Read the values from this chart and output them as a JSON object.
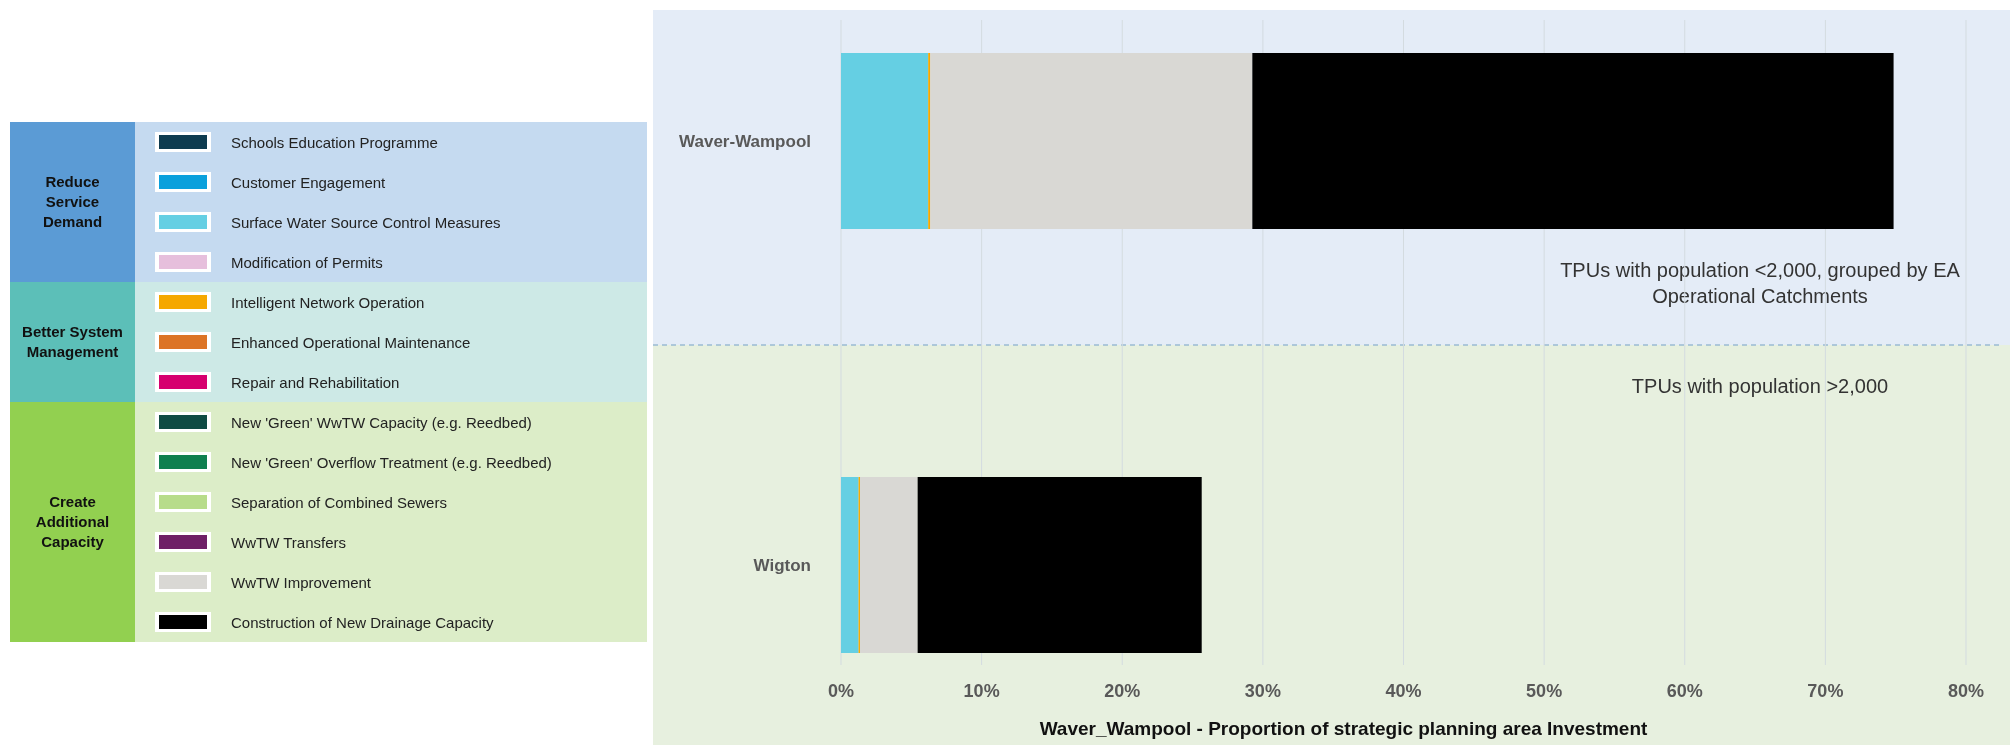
{
  "chart_data": {
    "type": "bar",
    "orientation": "horizontal",
    "stacked": true,
    "categories": [
      "Waver-Wampool",
      "Wigton"
    ],
    "series": [
      {
        "name": "Schools Education Programme",
        "color": "#0d3b4f",
        "values": [
          0,
          0
        ]
      },
      {
        "name": "Customer Engagement",
        "color": "#0aa0dc",
        "values": [
          0,
          0
        ]
      },
      {
        "name": "Surface Water Source Control Measures",
        "color": "#65cfe3",
        "values": [
          6.2,
          1.25
        ]
      },
      {
        "name": "Modification of Permits",
        "color": "#e6bfdc",
        "values": [
          0,
          0
        ]
      },
      {
        "name": "Intelligent Network Operation",
        "color": "#f5a800",
        "values": [
          0.15,
          0.1
        ]
      },
      {
        "name": "Enhanced Operational Maintenance",
        "color": "#dc7425",
        "values": [
          0,
          0
        ]
      },
      {
        "name": "Repair and Rehabilitation",
        "color": "#d6006e",
        "values": [
          0,
          0
        ]
      },
      {
        "name": "New 'Green' WwTW Capacity (e.g. Reedbed)",
        "color": "#0f4b43",
        "values": [
          0,
          0
        ]
      },
      {
        "name": "New 'Green' Overflow Treatment (e.g. Reedbed)",
        "color": "#0f7f4f",
        "values": [
          0,
          0
        ]
      },
      {
        "name": "Separation of Combined Sewers",
        "color": "#b7dc8a",
        "values": [
          0,
          0
        ]
      },
      {
        "name": "WwTW Transfers",
        "color": "#6e1f66",
        "values": [
          0,
          0
        ]
      },
      {
        "name": "WwTW Improvement",
        "color": "#d9d8d4",
        "values": [
          22.9,
          4.1
        ]
      },
      {
        "name": "Construction of New Drainage Capacity",
        "color": "#000000",
        "values": [
          45.6,
          20.2
        ]
      }
    ],
    "xlim": [
      0,
      80
    ],
    "xticks": [
      {
        "value": 0,
        "label": "0%"
      },
      {
        "value": 10,
        "label": "10%"
      },
      {
        "value": 20,
        "label": "20%"
      },
      {
        "value": 30,
        "label": "30%"
      },
      {
        "value": 40,
        "label": "40%"
      },
      {
        "value": 50,
        "label": "50%"
      },
      {
        "value": 60,
        "label": "60%"
      },
      {
        "value": 70,
        "label": "70%"
      },
      {
        "value": 80,
        "label": "80%"
      }
    ],
    "xlabel": "Waver_Wampool - Proportion of strategic planning area Investment",
    "grid": "x",
    "legend": "left",
    "bands": [
      {
        "axis": "y",
        "from": "Waver-Wampool",
        "to": "Waver-Wampool",
        "label": "TPUs with population <2,000, grouped by EA Operational Catchments",
        "color": "#e4ecf7"
      },
      {
        "axis": "y",
        "from": "Wigton",
        "to": "Wigton",
        "label": "TPUs with population >2,000",
        "color": "#e7f0df"
      }
    ],
    "annotations": [
      "Reduce Service Demand",
      "Better System Management",
      "Create Additional Capacity"
    ]
  }
}
